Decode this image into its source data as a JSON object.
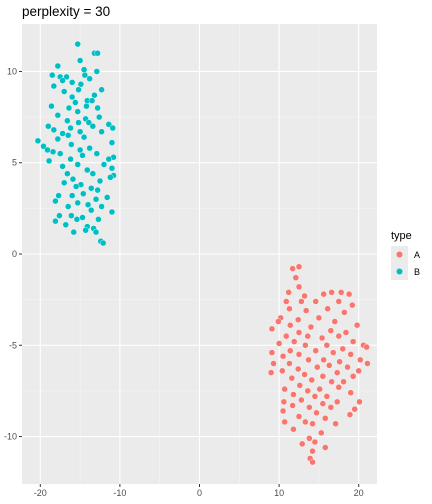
{
  "chart_data": {
    "type": "scatter",
    "title": "perplexity = 30",
    "xlabel": "",
    "ylabel": "",
    "xlim": [
      -22.3,
      22.3
    ],
    "ylim": [
      -12.6,
      12.6
    ],
    "x_ticks": [
      -20,
      -10,
      0,
      10,
      20
    ],
    "y_ticks": [
      -10,
      -5,
      0,
      5,
      10
    ],
    "x_tick_labels": [
      "-20",
      "-10",
      "0",
      "10",
      "20"
    ],
    "y_tick_labels": [
      "-10",
      "-5",
      "0",
      "5",
      "10"
    ],
    "grid": true,
    "background": "#ebebeb",
    "legend": {
      "title": "type",
      "position": "right",
      "entries": [
        {
          "label": "A",
          "color": "#F8766D"
        },
        {
          "label": "B",
          "color": "#00BFC4"
        }
      ]
    },
    "series": [
      {
        "name": "B",
        "color": "#00BFC4",
        "points": [
          [
            -15.3,
            11.5
          ],
          [
            -13.2,
            11.0
          ],
          [
            -12.8,
            11.0
          ],
          [
            -15.0,
            10.6
          ],
          [
            -17.8,
            10.3
          ],
          [
            -14.5,
            10.1
          ],
          [
            -12.9,
            10.0
          ],
          [
            -18.5,
            9.8
          ],
          [
            -17.5,
            9.7
          ],
          [
            -16.7,
            9.7
          ],
          [
            -14.4,
            9.8
          ],
          [
            -13.8,
            9.6
          ],
          [
            -17.2,
            9.5
          ],
          [
            -16.0,
            9.4
          ],
          [
            -14.9,
            9.3
          ],
          [
            -18.3,
            9.2
          ],
          [
            -15.2,
            9.0
          ],
          [
            -12.3,
            9.0
          ],
          [
            -17.0,
            8.9
          ],
          [
            -13.2,
            8.7
          ],
          [
            -16.0,
            8.6
          ],
          [
            -14.1,
            8.4
          ],
          [
            -13.5,
            8.4
          ],
          [
            -15.6,
            8.3
          ],
          [
            -18.6,
            8.1
          ],
          [
            -16.4,
            8.0
          ],
          [
            -14.2,
            8.1
          ],
          [
            -12.8,
            8.0
          ],
          [
            -15.3,
            7.8
          ],
          [
            -17.8,
            7.6
          ],
          [
            -12.6,
            7.5
          ],
          [
            -14.3,
            7.4
          ],
          [
            -16.6,
            7.3
          ],
          [
            -15.2,
            7.2
          ],
          [
            -13.9,
            7.2
          ],
          [
            -11.4,
            7.1
          ],
          [
            -13.4,
            7.0
          ],
          [
            -16.2,
            6.9
          ],
          [
            -19.0,
            7.0
          ],
          [
            -10.9,
            6.9
          ],
          [
            -18.3,
            6.8
          ],
          [
            -15.0,
            6.7
          ],
          [
            -12.3,
            6.7
          ],
          [
            -17.2,
            6.6
          ],
          [
            -14.5,
            6.4
          ],
          [
            -16.5,
            6.5
          ],
          [
            -20.3,
            6.2
          ],
          [
            -17.8,
            6.3
          ],
          [
            -11.0,
            6.1
          ],
          [
            -19.6,
            5.9
          ],
          [
            -16.1,
            6.0
          ],
          [
            -13.8,
            5.8
          ],
          [
            -15.0,
            5.7
          ],
          [
            -18.4,
            5.6
          ],
          [
            -19.1,
            5.7
          ],
          [
            -17.5,
            5.5
          ],
          [
            -12.9,
            5.5
          ],
          [
            -14.7,
            5.4
          ],
          [
            -10.8,
            5.3
          ],
          [
            -11.4,
            5.2
          ],
          [
            -16.2,
            5.2
          ],
          [
            -18.9,
            5.1
          ],
          [
            -12.0,
            4.9
          ],
          [
            -15.3,
            4.9
          ],
          [
            -17.2,
            4.8
          ],
          [
            -11.0,
            4.7
          ],
          [
            -14.1,
            4.6
          ],
          [
            -13.4,
            4.4
          ],
          [
            -16.6,
            4.4
          ],
          [
            -10.8,
            4.3
          ],
          [
            -11.2,
            4.2
          ],
          [
            -15.9,
            4.1
          ],
          [
            -12.5,
            4.0
          ],
          [
            -14.9,
            3.8
          ],
          [
            -17.0,
            3.9
          ],
          [
            -15.5,
            3.7
          ],
          [
            -12.8,
            3.5
          ],
          [
            -13.6,
            3.6
          ],
          [
            -14.6,
            3.3
          ],
          [
            -16.0,
            3.2
          ],
          [
            -17.7,
            3.2
          ],
          [
            -11.6,
            3.1
          ],
          [
            -13.0,
            3.0
          ],
          [
            -18.1,
            2.9
          ],
          [
            -15.3,
            2.8
          ],
          [
            -14.0,
            2.7
          ],
          [
            -16.5,
            2.6
          ],
          [
            -12.3,
            2.6
          ],
          [
            -11.0,
            2.3
          ],
          [
            -13.6,
            2.4
          ],
          [
            -17.6,
            2.1
          ],
          [
            -16.1,
            2.1
          ],
          [
            -14.7,
            2.0
          ],
          [
            -15.4,
            1.9
          ],
          [
            -18.1,
            1.8
          ],
          [
            -12.7,
            1.9
          ],
          [
            -16.8,
            1.6
          ],
          [
            -14.1,
            1.5
          ],
          [
            -13.3,
            1.4
          ],
          [
            -14.3,
            1.3
          ],
          [
            -15.8,
            1.2
          ],
          [
            -13.0,
            1.2
          ],
          [
            -12.4,
            0.7
          ],
          [
            -12.1,
            0.6
          ]
        ]
      },
      {
        "name": "A",
        "color": "#F8766D",
        "points": [
          [
            12.5,
            -0.7
          ],
          [
            11.7,
            -0.8
          ],
          [
            12.1,
            -1.3
          ],
          [
            12.5,
            -1.8
          ],
          [
            11.2,
            -2.1
          ],
          [
            16.6,
            -2.1
          ],
          [
            17.8,
            -2.1
          ],
          [
            15.6,
            -2.2
          ],
          [
            13.2,
            -2.3
          ],
          [
            18.8,
            -2.2
          ],
          [
            10.9,
            -2.6
          ],
          [
            12.8,
            -2.6
          ],
          [
            14.6,
            -2.6
          ],
          [
            17.5,
            -2.6
          ],
          [
            11.3,
            -3.0
          ],
          [
            16.1,
            -3.0
          ],
          [
            19.2,
            -2.8
          ],
          [
            13.4,
            -3.1
          ],
          [
            18.2,
            -3.2
          ],
          [
            10.2,
            -3.5
          ],
          [
            15.0,
            -3.5
          ],
          [
            12.4,
            -3.6
          ],
          [
            9.9,
            -3.7
          ],
          [
            17.0,
            -3.7
          ],
          [
            11.4,
            -3.9
          ],
          [
            14.0,
            -4.0
          ],
          [
            19.8,
            -3.9
          ],
          [
            9.1,
            -4.1
          ],
          [
            16.5,
            -4.2
          ],
          [
            12.5,
            -4.3
          ],
          [
            18.4,
            -4.3
          ],
          [
            10.9,
            -4.5
          ],
          [
            13.6,
            -4.5
          ],
          [
            15.4,
            -4.6
          ],
          [
            17.5,
            -4.5
          ],
          [
            11.9,
            -4.8
          ],
          [
            19.3,
            -4.8
          ],
          [
            10.0,
            -4.9
          ],
          [
            16.0,
            -5.0
          ],
          [
            13.3,
            -5.0
          ],
          [
            20.6,
            -5.0
          ],
          [
            21.0,
            -5.1
          ],
          [
            18.0,
            -5.2
          ],
          [
            11.4,
            -5.3
          ],
          [
            14.6,
            -5.3
          ],
          [
            9.1,
            -5.4
          ],
          [
            16.8,
            -5.4
          ],
          [
            12.5,
            -5.5
          ],
          [
            19.0,
            -5.5
          ],
          [
            10.5,
            -5.6
          ],
          [
            15.6,
            -5.8
          ],
          [
            13.7,
            -5.8
          ],
          [
            17.6,
            -5.9
          ],
          [
            20.2,
            -5.8
          ],
          [
            11.3,
            -6.0
          ],
          [
            9.3,
            -6.0
          ],
          [
            21.1,
            -6.0
          ],
          [
            16.3,
            -6.1
          ],
          [
            14.8,
            -6.2
          ],
          [
            18.6,
            -6.2
          ],
          [
            12.4,
            -6.3
          ],
          [
            20.0,
            -6.4
          ],
          [
            10.4,
            -6.4
          ],
          [
            9.0,
            -6.5
          ],
          [
            17.3,
            -6.5
          ],
          [
            13.2,
            -6.6
          ],
          [
            15.5,
            -6.7
          ],
          [
            19.3,
            -6.7
          ],
          [
            11.6,
            -6.8
          ],
          [
            14.1,
            -6.9
          ],
          [
            16.6,
            -7.0
          ],
          [
            18.1,
            -7.0
          ],
          [
            12.6,
            -7.2
          ],
          [
            10.7,
            -7.4
          ],
          [
            15.1,
            -7.4
          ],
          [
            17.5,
            -7.3
          ],
          [
            13.6,
            -7.5
          ],
          [
            11.8,
            -7.7
          ],
          [
            16.0,
            -7.8
          ],
          [
            14.5,
            -7.8
          ],
          [
            19.0,
            -7.6
          ],
          [
            12.8,
            -8.0
          ],
          [
            10.6,
            -8.1
          ],
          [
            17.3,
            -8.1
          ],
          [
            15.5,
            -8.2
          ],
          [
            20.1,
            -8.1
          ],
          [
            11.7,
            -8.3
          ],
          [
            13.8,
            -8.4
          ],
          [
            16.5,
            -8.4
          ],
          [
            10.5,
            -8.6
          ],
          [
            14.7,
            -8.7
          ],
          [
            19.5,
            -8.5
          ],
          [
            12.5,
            -8.9
          ],
          [
            15.8,
            -9.0
          ],
          [
            18.9,
            -8.8
          ],
          [
            10.7,
            -9.2
          ],
          [
            13.3,
            -9.2
          ],
          [
            14.2,
            -9.3
          ],
          [
            17.1,
            -9.3
          ],
          [
            11.8,
            -9.6
          ],
          [
            15.3,
            -9.8
          ],
          [
            13.8,
            -10.1
          ],
          [
            14.5,
            -10.3
          ],
          [
            12.9,
            -10.4
          ],
          [
            15.8,
            -10.6
          ],
          [
            14.2,
            -10.8
          ],
          [
            13.9,
            -11.2
          ],
          [
            14.2,
            -11.4
          ]
        ]
      }
    ]
  }
}
